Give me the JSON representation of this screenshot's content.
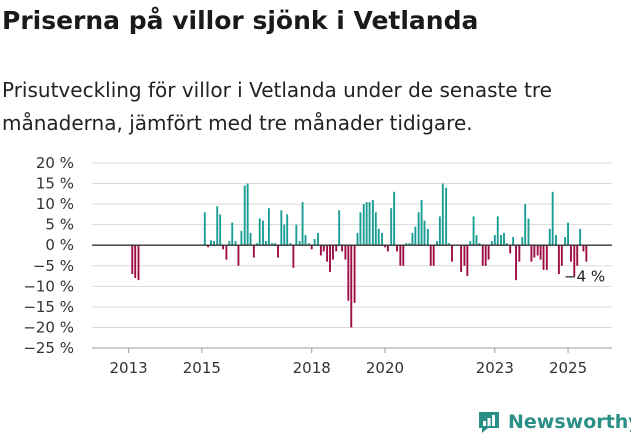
{
  "title": "Priserna på villor sjönk i Vetlanda",
  "subtitle": "Prisutveckling för villor i Vetlanda under de senaste tre månaderna, jämfört med tre månader tidigare.",
  "brand": "Newsworthy",
  "colors": {
    "positive": "#1a9e94",
    "negative": "#9e0c45",
    "zero_line": "#333333",
    "grid": "#d9d9d9",
    "brand": "#2a8f86"
  },
  "chart_data": {
    "type": "bar",
    "title": "Priserna på villor sjönk i Vetlanda",
    "ylabel": "",
    "xlabel": "",
    "ylim": [
      -25,
      20
    ],
    "yticks": [
      20,
      15,
      10,
      5,
      0,
      -5,
      -10,
      -15,
      -20,
      -25
    ],
    "ytick_labels": [
      "20 %",
      "15 %",
      "10 %",
      "5 %",
      "0 %",
      "−5 %",
      "−10 %",
      "−15 %",
      "−20 %",
      "−25 %"
    ],
    "xlim": [
      2012.0,
      2026.2
    ],
    "xticks": [
      2013,
      2015,
      2018,
      2020,
      2023,
      2025
    ],
    "xtick_labels": [
      "2013",
      "2015",
      "2018",
      "2020",
      "2023",
      "2025"
    ],
    "annotation": {
      "text": "−4 %",
      "x": 2025.0,
      "y": -4
    },
    "series": [
      {
        "name": "Prisutveckling",
        "points": [
          [
            2013.1,
            -7
          ],
          [
            2013.18,
            -8
          ],
          [
            2013.27,
            -8.5
          ],
          [
            2015.08,
            8
          ],
          [
            2015.17,
            -0.5
          ],
          [
            2015.25,
            1.2
          ],
          [
            2015.33,
            1
          ],
          [
            2015.42,
            9.5
          ],
          [
            2015.5,
            7.5
          ],
          [
            2015.58,
            -1
          ],
          [
            2015.67,
            -3.5
          ],
          [
            2015.75,
            1
          ],
          [
            2015.83,
            5.5
          ],
          [
            2015.92,
            1
          ],
          [
            2016.0,
            -5
          ],
          [
            2016.08,
            3.5
          ],
          [
            2016.17,
            14.5
          ],
          [
            2016.25,
            15
          ],
          [
            2016.33,
            3
          ],
          [
            2016.42,
            -3
          ],
          [
            2016.5,
            0.5
          ],
          [
            2016.58,
            6.5
          ],
          [
            2016.67,
            6
          ],
          [
            2016.75,
            1
          ],
          [
            2016.83,
            9
          ],
          [
            2016.92,
            0.5
          ],
          [
            2017.0,
            0.5
          ],
          [
            2017.08,
            -3
          ],
          [
            2017.17,
            8.5
          ],
          [
            2017.25,
            5
          ],
          [
            2017.33,
            7.5
          ],
          [
            2017.42,
            0.5
          ],
          [
            2017.5,
            -5.5
          ],
          [
            2017.58,
            5
          ],
          [
            2017.67,
            1
          ],
          [
            2017.75,
            10.5
          ],
          [
            2017.83,
            2.5
          ],
          [
            2017.92,
            0.5
          ],
          [
            2018.0,
            -1
          ],
          [
            2018.08,
            1.5
          ],
          [
            2018.17,
            3
          ],
          [
            2018.25,
            -2.5
          ],
          [
            2018.33,
            -1.5
          ],
          [
            2018.42,
            -4
          ],
          [
            2018.5,
            -6.5
          ],
          [
            2018.58,
            -3.5
          ],
          [
            2018.67,
            -1.5
          ],
          [
            2018.75,
            8.5
          ],
          [
            2018.83,
            -1.5
          ],
          [
            2018.92,
            -3.5
          ],
          [
            2019.0,
            -13.5
          ],
          [
            2019.08,
            -20
          ],
          [
            2019.17,
            -14
          ],
          [
            2019.25,
            3
          ],
          [
            2019.33,
            8
          ],
          [
            2019.42,
            10
          ],
          [
            2019.5,
            10.5
          ],
          [
            2019.58,
            10.5
          ],
          [
            2019.67,
            11
          ],
          [
            2019.75,
            8
          ],
          [
            2019.83,
            4
          ],
          [
            2019.92,
            3
          ],
          [
            2020.0,
            -0.5
          ],
          [
            2020.08,
            -1.5
          ],
          [
            2020.17,
            9
          ],
          [
            2020.25,
            13
          ],
          [
            2020.33,
            -1.5
          ],
          [
            2020.42,
            -5
          ],
          [
            2020.5,
            -5
          ],
          [
            2020.58,
            0.5
          ],
          [
            2020.67,
            0.5
          ],
          [
            2020.75,
            3
          ],
          [
            2020.83,
            4.5
          ],
          [
            2020.92,
            8
          ],
          [
            2021.0,
            11
          ],
          [
            2021.08,
            6
          ],
          [
            2021.17,
            4
          ],
          [
            2021.25,
            -5
          ],
          [
            2021.33,
            -5
          ],
          [
            2021.42,
            1
          ],
          [
            2021.5,
            7
          ],
          [
            2021.58,
            15
          ],
          [
            2021.67,
            14
          ],
          [
            2021.75,
            0.5
          ],
          [
            2021.83,
            -4
          ],
          [
            2022.08,
            -6.5
          ],
          [
            2022.17,
            -5
          ],
          [
            2022.25,
            -7.5
          ],
          [
            2022.33,
            1
          ],
          [
            2022.42,
            7
          ],
          [
            2022.5,
            2.5
          ],
          [
            2022.58,
            0.5
          ],
          [
            2022.67,
            -5
          ],
          [
            2022.75,
            -5
          ],
          [
            2022.83,
            -3.5
          ],
          [
            2022.92,
            1
          ],
          [
            2023.0,
            2.5
          ],
          [
            2023.08,
            7
          ],
          [
            2023.17,
            2.5
          ],
          [
            2023.25,
            3
          ],
          [
            2023.33,
            0.5
          ],
          [
            2023.42,
            -2
          ],
          [
            2023.5,
            2
          ],
          [
            2023.58,
            -8.5
          ],
          [
            2023.67,
            -4
          ],
          [
            2023.75,
            2
          ],
          [
            2023.83,
            10
          ],
          [
            2023.92,
            6.5
          ],
          [
            2024.0,
            -4
          ],
          [
            2024.08,
            -3
          ],
          [
            2024.17,
            -2.5
          ],
          [
            2024.25,
            -3.5
          ],
          [
            2024.33,
            -6
          ],
          [
            2024.42,
            -6
          ],
          [
            2024.5,
            4
          ],
          [
            2024.58,
            13
          ],
          [
            2024.67,
            2.5
          ],
          [
            2024.75,
            -7
          ],
          [
            2024.83,
            -5
          ],
          [
            2024.92,
            2
          ],
          [
            2025.0,
            5.5
          ],
          [
            2025.08,
            -4
          ],
          [
            2025.17,
            -7.5
          ],
          [
            2025.25,
            -5
          ],
          [
            2025.33,
            4
          ],
          [
            2025.42,
            -1.5
          ],
          [
            2025.5,
            -4
          ]
        ]
      }
    ]
  }
}
